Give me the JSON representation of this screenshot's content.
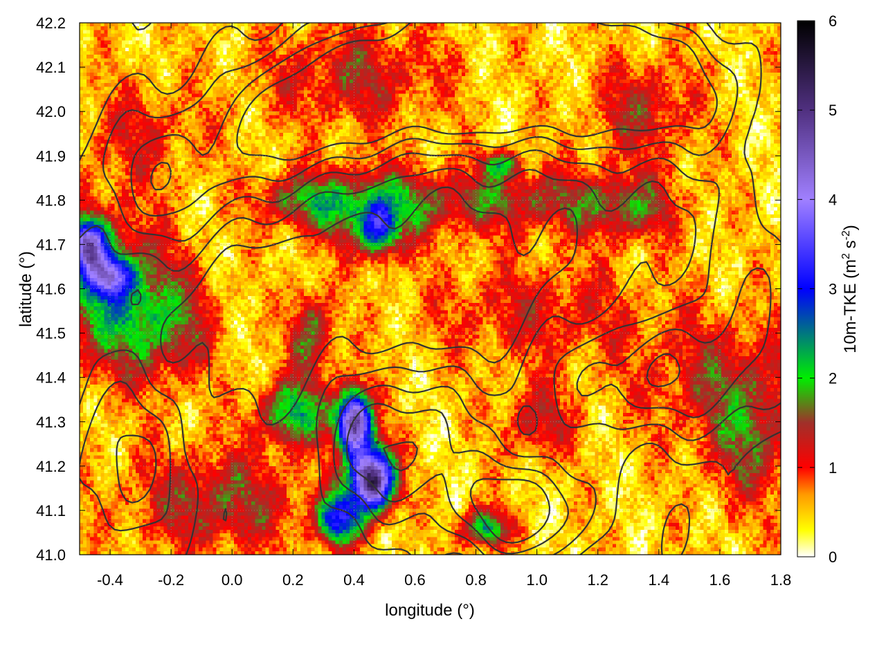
{
  "chart_data": {
    "type": "heatmap",
    "title": "",
    "xlabel": "longitude (°)",
    "ylabel": "latitude (°)",
    "colorbar_label": "10m-TKE (m² s⁻²)",
    "colorbar_label_main": "10m-TKE (m",
    "colorbar_label_sup1": "2",
    "colorbar_label_mid": " s",
    "colorbar_label_sup2": "-2",
    "colorbar_label_end": ")",
    "xlim": [
      -0.5,
      1.8
    ],
    "ylim": [
      41.0,
      42.2
    ],
    "clim": [
      0,
      6
    ],
    "x_ticks": [
      -0.4,
      -0.2,
      0.0,
      0.2,
      0.4,
      0.6,
      0.8,
      1.0,
      1.2,
      1.4,
      1.6,
      1.8
    ],
    "x_tick_labels": [
      "-0.4",
      "-0.2",
      "0.0",
      "0.2",
      "0.4",
      "0.6",
      "0.8",
      "1.0",
      "1.2",
      "1.4",
      "1.6",
      "1.8"
    ],
    "y_ticks": [
      41.0,
      41.1,
      41.2,
      41.3,
      41.4,
      41.5,
      41.6,
      41.7,
      41.8,
      41.9,
      42.0,
      42.1,
      42.2
    ],
    "y_tick_labels": [
      "41.0",
      "41.1",
      "41.2",
      "41.3",
      "41.4",
      "41.5",
      "41.6",
      "41.7",
      "41.8",
      "41.9",
      "42.0",
      "42.1",
      "42.2"
    ],
    "colorbar_ticks": [
      0,
      1,
      2,
      3,
      4,
      5,
      6
    ],
    "colorbar_tick_labels": [
      "0",
      "1",
      "2",
      "3",
      "4",
      "5",
      "6"
    ],
    "grid": true,
    "colormap": [
      {
        "value": 0.0,
        "color": "#ffffff"
      },
      {
        "value": 0.3,
        "color": "#ffff00"
      },
      {
        "value": 0.7,
        "color": "#ff9900"
      },
      {
        "value": 1.0,
        "color": "#ff0000"
      },
      {
        "value": 1.5,
        "color": "#a0302a"
      },
      {
        "value": 2.0,
        "color": "#00ee00"
      },
      {
        "value": 3.0,
        "color": "#0000ff"
      },
      {
        "value": 4.0,
        "color": "#a080ff"
      },
      {
        "value": 5.0,
        "color": "#503080"
      },
      {
        "value": 6.0,
        "color": "#000000"
      }
    ],
    "field_features": [
      {
        "lon": -0.42,
        "lat": 41.6,
        "sx": 0.13,
        "sy": 0.12,
        "amp": 1.6
      },
      {
        "lon": -0.47,
        "lat": 41.7,
        "sx": 0.04,
        "sy": 0.04,
        "amp": 3.0
      },
      {
        "lon": -0.4,
        "lat": 41.63,
        "sx": 0.05,
        "sy": 0.03,
        "amp": 2.2
      },
      {
        "lon": -0.22,
        "lat": 41.52,
        "sx": 0.11,
        "sy": 0.09,
        "amp": 1.2
      },
      {
        "lon": 0.22,
        "lat": 41.8,
        "sx": 0.1,
        "sy": 0.04,
        "amp": 1.1
      },
      {
        "lon": 0.45,
        "lat": 41.78,
        "sx": 0.14,
        "sy": 0.06,
        "amp": 1.5
      },
      {
        "lon": 0.48,
        "lat": 41.73,
        "sx": 0.04,
        "sy": 0.04,
        "amp": 1.9
      },
      {
        "lon": 0.9,
        "lat": 41.8,
        "sx": 0.25,
        "sy": 0.05,
        "amp": 1.1
      },
      {
        "lon": 0.88,
        "lat": 41.88,
        "sx": 0.04,
        "sy": 0.02,
        "amp": 1.6
      },
      {
        "lon": 0.2,
        "lat": 41.32,
        "sx": 0.08,
        "sy": 0.05,
        "amp": 1.8
      },
      {
        "lon": 0.4,
        "lat": 41.3,
        "sx": 0.04,
        "sy": 0.05,
        "amp": 4.5
      },
      {
        "lon": 0.46,
        "lat": 41.17,
        "sx": 0.05,
        "sy": 0.05,
        "amp": 5.0
      },
      {
        "lon": 0.35,
        "lat": 41.08,
        "sx": 0.05,
        "sy": 0.04,
        "amp": 2.6
      },
      {
        "lon": 0.83,
        "lat": 41.06,
        "sx": 0.05,
        "sy": 0.03,
        "amp": 2.0
      },
      {
        "lon": 0.26,
        "lat": 41.5,
        "sx": 0.05,
        "sy": 0.07,
        "amp": 1.3
      },
      {
        "lon": 1.3,
        "lat": 41.78,
        "sx": 0.12,
        "sy": 0.05,
        "amp": 1.0
      },
      {
        "lon": 1.35,
        "lat": 42.0,
        "sx": 0.12,
        "sy": 0.08,
        "amp": 0.9
      },
      {
        "lon": 0.4,
        "lat": 42.08,
        "sx": 0.2,
        "sy": 0.08,
        "amp": 0.9
      },
      {
        "lon": -0.05,
        "lat": 41.12,
        "sx": 0.2,
        "sy": 0.08,
        "amp": 1.1
      },
      {
        "lon": 1.6,
        "lat": 41.4,
        "sx": 0.2,
        "sy": 0.1,
        "amp": 0.8
      },
      {
        "lon": 1.0,
        "lat": 41.55,
        "sx": 0.25,
        "sy": 0.08,
        "amp": 0.7
      },
      {
        "lon": 1.7,
        "lat": 41.25,
        "sx": 0.1,
        "sy": 0.1,
        "amp": 1.0
      },
      {
        "lon": 1.0,
        "lat": 41.3,
        "sx": 0.08,
        "sy": 0.06,
        "amp": 0.9
      },
      {
        "lon": -0.3,
        "lat": 41.95,
        "sx": 0.15,
        "sy": 0.08,
        "amp": 0.6
      }
    ],
    "contour_levels": [
      400,
      600,
      800,
      1000,
      1200
    ],
    "terrain_features": [
      {
        "lon": 0.9,
        "lat": 42.12,
        "sx": 0.25,
        "sy": 0.12,
        "amp": 1400
      },
      {
        "lon": 0.45,
        "lat": 42.05,
        "sx": 0.25,
        "sy": 0.1,
        "amp": 900
      },
      {
        "lon": 1.4,
        "lat": 42.05,
        "sx": 0.25,
        "sy": 0.12,
        "amp": 900
      },
      {
        "lon": 0.55,
        "lat": 41.25,
        "sx": 0.18,
        "sy": 0.12,
        "amp": 800
      },
      {
        "lon": 0.95,
        "lat": 41.1,
        "sx": 0.15,
        "sy": 0.08,
        "amp": 1000
      },
      {
        "lon": 1.35,
        "lat": 41.4,
        "sx": 0.25,
        "sy": 0.1,
        "amp": 700
      },
      {
        "lon": -0.2,
        "lat": 41.85,
        "sx": 0.2,
        "sy": 0.12,
        "amp": 700
      },
      {
        "lon": -0.35,
        "lat": 41.2,
        "sx": 0.15,
        "sy": 0.15,
        "amp": 600
      },
      {
        "lon": 0.2,
        "lat": 41.95,
        "sx": 0.15,
        "sy": 0.1,
        "amp": 600
      },
      {
        "lon": 0.7,
        "lat": 41.6,
        "sx": 0.2,
        "sy": 0.12,
        "amp": -400
      },
      {
        "lon": 0.1,
        "lat": 41.55,
        "sx": 0.2,
        "sy": 0.15,
        "amp": -300
      },
      {
        "lon": 1.7,
        "lat": 41.6,
        "sx": 0.15,
        "sy": 0.2,
        "amp": 500
      }
    ]
  }
}
